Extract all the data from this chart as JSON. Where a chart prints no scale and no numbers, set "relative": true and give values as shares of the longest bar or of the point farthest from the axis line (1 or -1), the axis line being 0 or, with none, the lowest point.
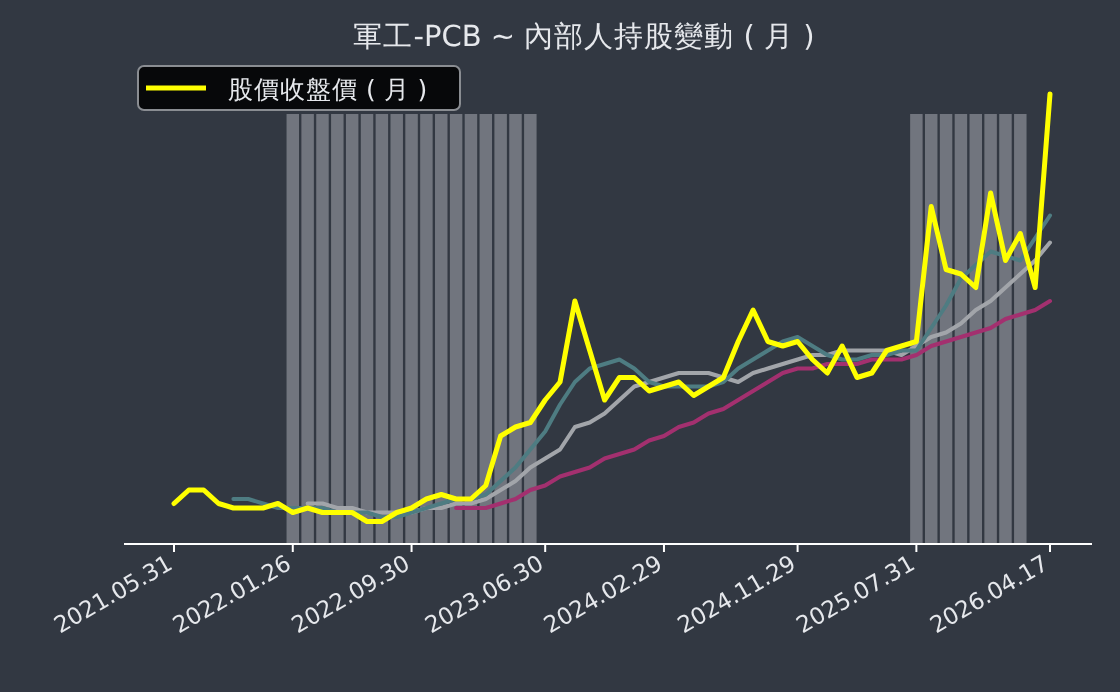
{
  "chart_data": {
    "type": "line",
    "title": "軍工-PCB ~ 內部人持股變動 ( 月 )",
    "relative": true,
    "legend": "top left",
    "tick_labels": "x",
    "categories": [
      "2021.05.31",
      null,
      null,
      null,
      null,
      null,
      null,
      null,
      "2022.01.26",
      null,
      null,
      null,
      null,
      null,
      null,
      null,
      "2022.09.30",
      null,
      null,
      null,
      null,
      null,
      null,
      null,
      null,
      "2023.06.30",
      null,
      null,
      null,
      null,
      null,
      null,
      null,
      "2024.02.29",
      null,
      null,
      null,
      null,
      null,
      null,
      null,
      null,
      "2024.11.29",
      null,
      null,
      null,
      null,
      null,
      null,
      null,
      "2025.07.31",
      null,
      null,
      null,
      null,
      null,
      null,
      null,
      null,
      "2026.04.17"
    ],
    "series": [
      {
        "type": "bar",
        "axis": "y2",
        "color": "#7c8088",
        "values": [
          null,
          null,
          null,
          null,
          null,
          null,
          null,
          null,
          1,
          1,
          1,
          1,
          1,
          1,
          1,
          1,
          1,
          1,
          1,
          1,
          1,
          1,
          1,
          1,
          1,
          null,
          null,
          null,
          null,
          null,
          null,
          null,
          null,
          null,
          null,
          null,
          null,
          null,
          null,
          null,
          null,
          null,
          null,
          null,
          null,
          null,
          null,
          null,
          null,
          null,
          1,
          1,
          1,
          1,
          1,
          1,
          1,
          1,
          null,
          null
        ]
      },
      {
        "color": "#a3306f",
        "values": [
          null,
          null,
          null,
          null,
          null,
          null,
          null,
          null,
          null,
          null,
          null,
          null,
          null,
          null,
          null,
          null,
          null,
          null,
          null,
          0.08,
          0.08,
          0.08,
          0.09,
          0.1,
          0.12,
          0.13,
          0.15,
          0.16,
          0.17,
          0.19,
          0.2,
          0.21,
          0.23,
          0.24,
          0.26,
          0.27,
          0.29,
          0.3,
          0.32,
          0.34,
          0.36,
          0.38,
          0.39,
          0.39,
          0.4,
          0.4,
          0.4,
          0.41,
          0.41,
          0.41,
          0.42,
          0.44,
          0.45,
          0.46,
          0.47,
          0.48,
          0.5,
          0.51,
          0.52,
          0.54
        ]
      },
      {
        "color": "#a2a5aa",
        "values": [
          null,
          null,
          null,
          null,
          null,
          null,
          null,
          null,
          null,
          0.09,
          0.09,
          0.08,
          0.08,
          0.07,
          0.07,
          0.07,
          0.07,
          0.08,
          0.08,
          0.09,
          0.09,
          0.1,
          0.12,
          0.14,
          0.17,
          0.19,
          0.21,
          0.26,
          0.27,
          0.29,
          0.32,
          0.35,
          0.36,
          0.37,
          0.38,
          0.38,
          0.38,
          0.37,
          0.36,
          0.38,
          0.39,
          0.4,
          0.41,
          0.42,
          0.42,
          0.43,
          0.43,
          0.43,
          0.43,
          0.42,
          0.44,
          0.46,
          0.47,
          0.49,
          0.52,
          0.54,
          0.57,
          0.6,
          0.63,
          0.67
        ]
      },
      {
        "color": "#4e7c82",
        "values": [
          null,
          null,
          null,
          null,
          0.1,
          0.1,
          0.09,
          0.08,
          0.08,
          0.08,
          0.08,
          0.07,
          0.07,
          0.07,
          0.06,
          0.06,
          0.07,
          0.08,
          0.09,
          0.1,
          0.1,
          0.11,
          0.14,
          0.17,
          0.21,
          0.25,
          0.31,
          0.36,
          0.39,
          0.4,
          0.41,
          0.39,
          0.36,
          0.35,
          0.35,
          0.35,
          0.35,
          0.36,
          0.39,
          0.41,
          0.43,
          0.45,
          0.46,
          0.44,
          0.42,
          0.41,
          0.41,
          0.42,
          0.42,
          0.43,
          0.43,
          0.48,
          0.53,
          0.59,
          0.62,
          0.65,
          0.64,
          0.63,
          0.68,
          0.73
        ]
      },
      {
        "name": "股價收盤價 ( 月 )",
        "color": "#ffff00",
        "values": [
          0.09,
          0.12,
          0.12,
          0.09,
          0.08,
          0.08,
          0.08,
          0.09,
          0.07,
          0.08,
          0.07,
          0.07,
          0.07,
          0.05,
          0.05,
          0.07,
          0.08,
          0.1,
          0.11,
          0.1,
          0.1,
          0.13,
          0.24,
          0.26,
          0.27,
          0.32,
          0.36,
          0.54,
          0.43,
          0.32,
          0.37,
          0.37,
          0.34,
          0.35,
          0.36,
          0.33,
          0.35,
          0.37,
          0.45,
          0.52,
          0.45,
          0.44,
          0.45,
          0.41,
          0.38,
          0.44,
          0.37,
          0.38,
          0.43,
          0.44,
          0.45,
          0.75,
          0.61,
          0.6,
          0.57,
          0.78,
          0.63,
          0.69,
          0.57,
          1.0
        ]
      }
    ]
  }
}
